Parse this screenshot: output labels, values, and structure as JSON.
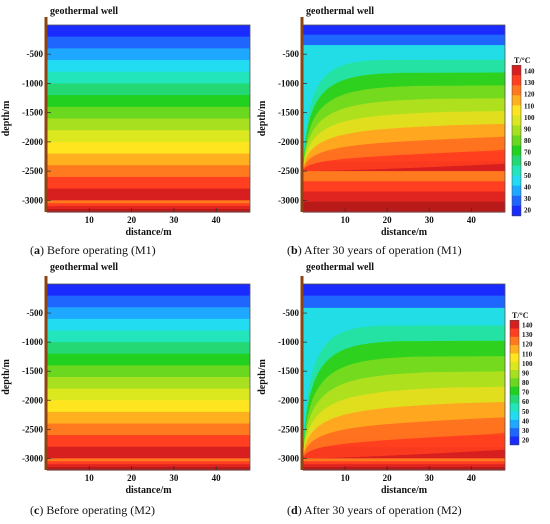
{
  "chart_data": [
    {
      "type": "heatmap",
      "id": "a",
      "well_label": "geothermal well",
      "caption": {
        "letter": "a",
        "text": " Before operating (M1)"
      },
      "xlabel": "distance/m",
      "ylabel": "depth/m",
      "x_ticks": [
        10,
        20,
        30,
        40
      ],
      "y_ticks": [
        -500,
        -1000,
        -1500,
        -2000,
        -2500,
        -3000
      ],
      "xlim": [
        0,
        48
      ],
      "ylim": [
        -3200,
        0
      ],
      "bottom_boundary": -3000,
      "cooled_zone": false
    },
    {
      "type": "heatmap",
      "id": "b",
      "well_label": "geothermal well",
      "caption": {
        "letter": "b",
        "text": " After 30 years of operation (M1)"
      },
      "xlabel": "distance/m",
      "ylabel": "depth/m",
      "x_ticks": [
        10,
        20,
        30,
        40
      ],
      "y_ticks": [
        -500,
        -1000,
        -1500,
        -2000,
        -2500,
        -3000
      ],
      "xlim": [
        0,
        48
      ],
      "ylim": [
        -3200,
        0
      ],
      "bottom_boundary": -2500,
      "cooled_zone": true,
      "legend": {
        "title": "T/°C",
        "ticks": [
          140,
          130,
          120,
          110,
          100,
          90,
          80,
          70,
          60,
          50,
          40,
          30,
          20
        ]
      }
    },
    {
      "type": "heatmap",
      "id": "c",
      "well_label": "geothermal well",
      "caption": {
        "letter": "c",
        "text": " Before operating (M2)"
      },
      "xlabel": "distance/m",
      "ylabel": "depth/m",
      "x_ticks": [
        10,
        20,
        30,
        40
      ],
      "y_ticks": [
        -500,
        -1000,
        -1500,
        -2000,
        -2500,
        -3000
      ],
      "xlim": [
        0,
        48
      ],
      "ylim": [
        -3200,
        0
      ],
      "bottom_boundary": -3000,
      "cooled_zone": false
    },
    {
      "type": "heatmap",
      "id": "d",
      "well_label": "geothermal well",
      "caption": {
        "letter": "d",
        "text": " After 30 years of operation (M2)"
      },
      "xlabel": "distance/m",
      "ylabel": "depth/m",
      "x_ticks": [
        10,
        20,
        30,
        40
      ],
      "y_ticks": [
        -500,
        -1000,
        -1500,
        -2000,
        -2500,
        -3000
      ],
      "xlim": [
        0,
        48
      ],
      "ylim": [
        -3200,
        0
      ],
      "bottom_boundary": -3000,
      "cooled_zone": true,
      "legend": {
        "title": "T/°C",
        "ticks": [
          140,
          130,
          120,
          110,
          100,
          90,
          80,
          70,
          60,
          50,
          40,
          30,
          20
        ]
      }
    }
  ],
  "colors": {
    "well": "#8b4513",
    "palette": [
      "#1a2bff",
      "#1f66ff",
      "#1fa8ff",
      "#22dcf2",
      "#22e5bb",
      "#24d873",
      "#22d01f",
      "#6ad81f",
      "#a6e01f",
      "#dce81f",
      "#ffe51f",
      "#ffb01f",
      "#ff7a1f",
      "#ff3f1f",
      "#d81f1f"
    ]
  }
}
